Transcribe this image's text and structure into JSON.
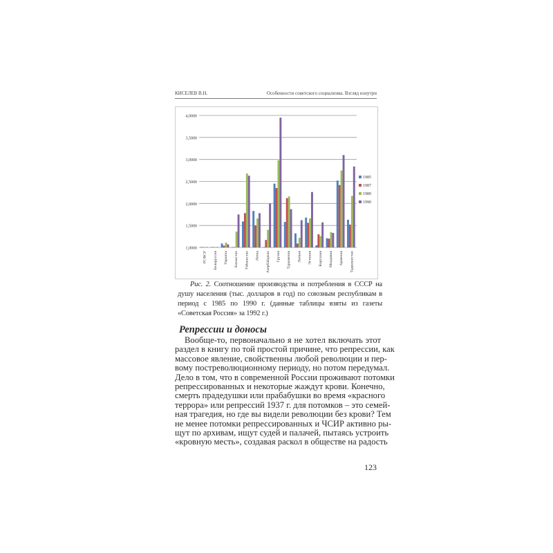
{
  "header": {
    "author": "КИСЕЛЕВ В.Н.",
    "title": "Особенности советского социализма. Взгляд изнутри"
  },
  "chart_data": {
    "type": "bar",
    "title": "",
    "xlabel": "",
    "ylabel": "",
    "ylim": [
      1.0,
      4.0
    ],
    "yticks": [
      "1,0000",
      "1,5000",
      "2,0000",
      "2,5000",
      "3,0000",
      "3,5000",
      "4,0000"
    ],
    "grid": true,
    "legend_position": "right",
    "categories": [
      "РСФСР",
      "Белоруссия",
      "Украина",
      "Казахстан",
      "Узбекистан",
      "Литва",
      "Азербайджан",
      "Грузия",
      "Туркмения",
      "Латвия",
      "Эстония",
      "Киргизия",
      "Молдавия",
      "Армения",
      "Таджикистан"
    ],
    "series": [
      {
        "name": "1985",
        "color": "#4f81bd",
        "values": [
          1.01,
          1.01,
          1.09,
          1.01,
          1.59,
          1.83,
          1.01,
          2.45,
          1.58,
          1.32,
          1.68,
          1.05,
          1.21,
          2.52,
          1.63
        ]
      },
      {
        "name": "1987",
        "color": "#c0504d",
        "values": [
          1.01,
          1.01,
          1.04,
          1.01,
          1.78,
          1.5,
          1.17,
          2.35,
          2.12,
          1.09,
          1.56,
          1.3,
          1.2,
          2.42,
          1.52
        ]
      },
      {
        "name": "1989",
        "color": "#9bbb59",
        "values": [
          1.01,
          1.01,
          1.11,
          1.36,
          2.68,
          1.66,
          1.4,
          2.98,
          2.16,
          1.22,
          1.66,
          1.26,
          1.35,
          2.75,
          2.17
        ]
      },
      {
        "name": "1990",
        "color": "#8064a2",
        "values": [
          1.01,
          1.01,
          1.07,
          1.75,
          2.63,
          1.78,
          2.0,
          3.95,
          1.87,
          1.62,
          2.26,
          1.57,
          1.33,
          3.1,
          2.84
        ]
      }
    ]
  },
  "caption": {
    "label": "Рис. 2.",
    "text": " Соотношение производства и потребления в СССР на душу населения (тыс. долларов в год) по союзным республикам в период с 1985 по 1990 г. (данные таблицы взяты из газеты «Советская Россия» за 1992 г.)"
  },
  "section": {
    "heading": "Репрессии и доносы",
    "lines": [
      "Вообще-то, первоначально я не хотел включать этот",
      "раздел в книгу по той простой причине, что репрессии, как",
      "массовое явление, свойственны любой революции и пер-",
      "вому постреволюционному периоду, но потом передумал.",
      "Дело в том, что в современной России проживают потомки",
      "репрессированных и некоторые жаждут крови. Конечно,",
      "смерть прадедушки или прабабушки во время «красного",
      "террора» или репрессий 1937 г. для потомков – это семей-",
      "ная трагедия, но где вы видели революции без крови? Тем",
      "не менее потомки репрессированных и ЧСИР активно ры-",
      "щут по архивам, ищут судей и палачей, пытаясь устроить",
      "«кровную месть», создавая раскол в обществе на радость"
    ]
  },
  "page_number": "123"
}
